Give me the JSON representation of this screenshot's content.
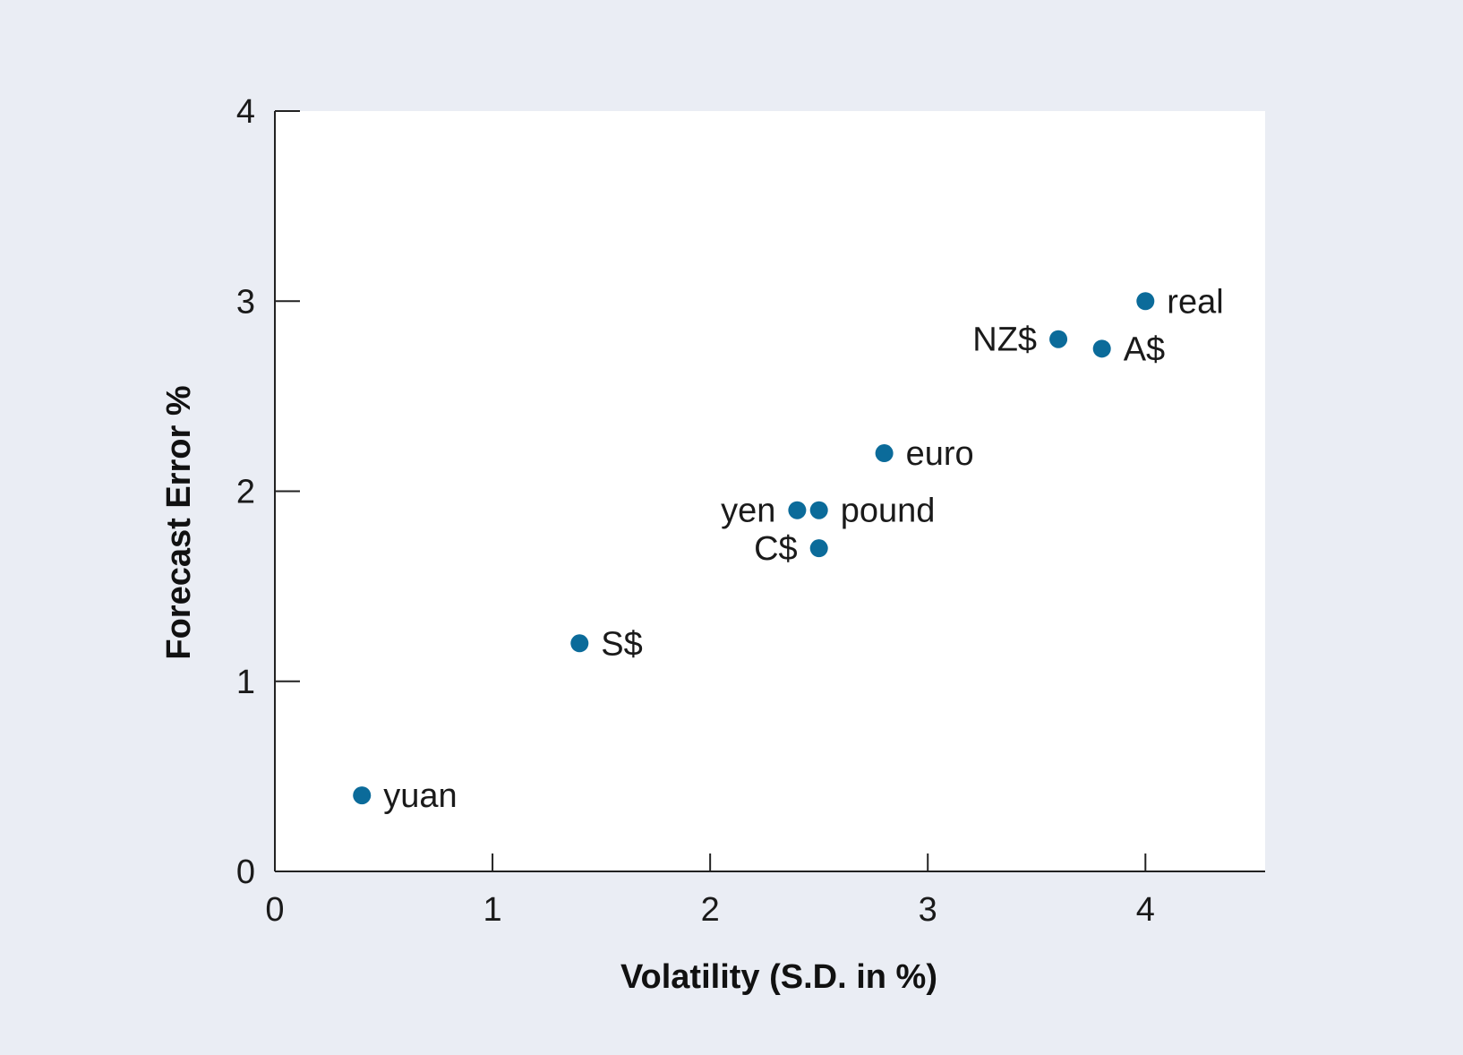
{
  "colors": {
    "background": "#eaedf4",
    "plot_area": "#ffffff",
    "point": "#0b6b9a",
    "axis": "#222222"
  },
  "chart_data": {
    "type": "scatter",
    "title": "",
    "xlabel": "Volatility (S.D. in %)",
    "ylabel": "Forecast Error %",
    "xlim": [
      0,
      4.55
    ],
    "ylim": [
      0,
      4
    ],
    "x_ticks": [
      0,
      1,
      2,
      3,
      4
    ],
    "y_ticks": [
      0,
      1,
      2,
      3,
      4
    ],
    "grid": false,
    "legend": "none",
    "points": [
      {
        "label": "yuan",
        "x": 0.4,
        "y": 0.4,
        "label_side": "right"
      },
      {
        "label": "S$",
        "x": 1.4,
        "y": 1.2,
        "label_side": "right"
      },
      {
        "label": "C$",
        "x": 2.5,
        "y": 1.7,
        "label_side": "left"
      },
      {
        "label": "yen",
        "x": 2.4,
        "y": 1.9,
        "label_side": "left"
      },
      {
        "label": "pound",
        "x": 2.5,
        "y": 1.9,
        "label_side": "right"
      },
      {
        "label": "euro",
        "x": 2.8,
        "y": 2.2,
        "label_side": "right"
      },
      {
        "label": "NZ$",
        "x": 3.6,
        "y": 2.8,
        "label_side": "left"
      },
      {
        "label": "A$",
        "x": 3.8,
        "y": 2.75,
        "label_side": "right"
      },
      {
        "label": "real",
        "x": 4.0,
        "y": 3.0,
        "label_side": "right"
      }
    ]
  }
}
